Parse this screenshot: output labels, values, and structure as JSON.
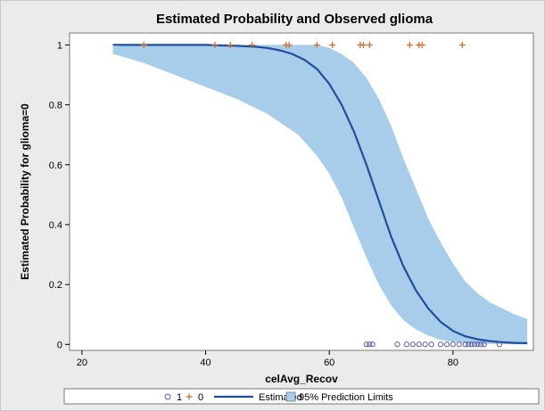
{
  "chart_data": {
    "type": "line",
    "title": "Estimated Probability and Observed glioma",
    "xlabel": "celAvg_Recov",
    "ylabel": "Estimated Probability for glioma=0",
    "xlim": [
      18,
      93
    ],
    "ylim": [
      -0.02,
      1.04
    ],
    "xticks": [
      20,
      40,
      60,
      80
    ],
    "yticks": [
      0,
      0.2,
      0.4,
      0.6,
      0.8,
      1
    ],
    "xtick_labels": [
      "20",
      "40",
      "60",
      "80"
    ],
    "ytick_labels": [
      "0",
      "0.2",
      "0.4",
      "0.6",
      "0.8",
      "1"
    ],
    "grid": false,
    "legend_position": "bottom",
    "series": [
      {
        "name": "Estimated",
        "kind": "line",
        "color": "#1f4e9e",
        "x": [
          25,
          30,
          35,
          40,
          45,
          48,
          50,
          52,
          54,
          56,
          58,
          60,
          62,
          64,
          66,
          68,
          70,
          72,
          74,
          76,
          78,
          80,
          82,
          84,
          86,
          88,
          90,
          92
        ],
        "y": [
          1.0,
          1.0,
          1.0,
          1.0,
          0.997,
          0.994,
          0.99,
          0.982,
          0.97,
          0.95,
          0.92,
          0.87,
          0.8,
          0.71,
          0.6,
          0.48,
          0.36,
          0.26,
          0.18,
          0.12,
          0.075,
          0.045,
          0.027,
          0.017,
          0.011,
          0.007,
          0.005,
          0.004
        ]
      },
      {
        "name": "95% Prediction Limits",
        "kind": "band",
        "color": "#a8cdea",
        "x": [
          25,
          30,
          35,
          40,
          45,
          50,
          55,
          58,
          60,
          62,
          64,
          66,
          68,
          70,
          72,
          74,
          76,
          78,
          80,
          82,
          84,
          86,
          88,
          90,
          92
        ],
        "lower": [
          0.97,
          0.94,
          0.9,
          0.86,
          0.82,
          0.77,
          0.7,
          0.63,
          0.57,
          0.49,
          0.39,
          0.29,
          0.2,
          0.13,
          0.08,
          0.05,
          0.03,
          0.015,
          0.008,
          0.004,
          0.002,
          0.001,
          0.001,
          0.0,
          0.0
        ],
        "upper": [
          0.995,
          1.0,
          1.0,
          1.0,
          1.0,
          1.0,
          1.0,
          1.0,
          0.99,
          0.97,
          0.94,
          0.89,
          0.82,
          0.73,
          0.62,
          0.52,
          0.42,
          0.34,
          0.27,
          0.21,
          0.17,
          0.14,
          0.12,
          0.1,
          0.085
        ]
      },
      {
        "name": "1",
        "kind": "scatter",
        "marker": "circle",
        "color": "#5a5ab4",
        "x": [
          66,
          66.5,
          67,
          71,
          72.5,
          73.5,
          74.5,
          75.5,
          76.5,
          78,
          79,
          80,
          81,
          82,
          82.5,
          83,
          83.5,
          84,
          84.5,
          85,
          87.5
        ],
        "y": [
          0,
          0,
          0,
          0,
          0,
          0,
          0,
          0,
          0,
          0,
          0,
          0,
          0,
          0,
          0,
          0,
          0,
          0,
          0,
          0,
          0
        ]
      },
      {
        "name": "0",
        "kind": "scatter",
        "marker": "plus",
        "color": "#d07030",
        "x": [
          30,
          41.5,
          44,
          47.5,
          53,
          53.5,
          58,
          60.5,
          65,
          65.5,
          66.5,
          73,
          74.5,
          75,
          81.5
        ],
        "y": [
          1,
          1,
          1,
          1,
          1,
          1,
          1,
          1,
          1,
          1,
          1,
          1,
          1,
          1,
          1
        ]
      }
    ],
    "legend": [
      {
        "key": "1",
        "label": "1",
        "marker": "circle"
      },
      {
        "key": "0",
        "label": "0",
        "marker": "plus"
      },
      {
        "key": "Estimated",
        "label": "Estimated",
        "marker": "line"
      },
      {
        "key": "95% Prediction Limits",
        "label": "95% Prediction Limits",
        "marker": "band"
      }
    ]
  }
}
